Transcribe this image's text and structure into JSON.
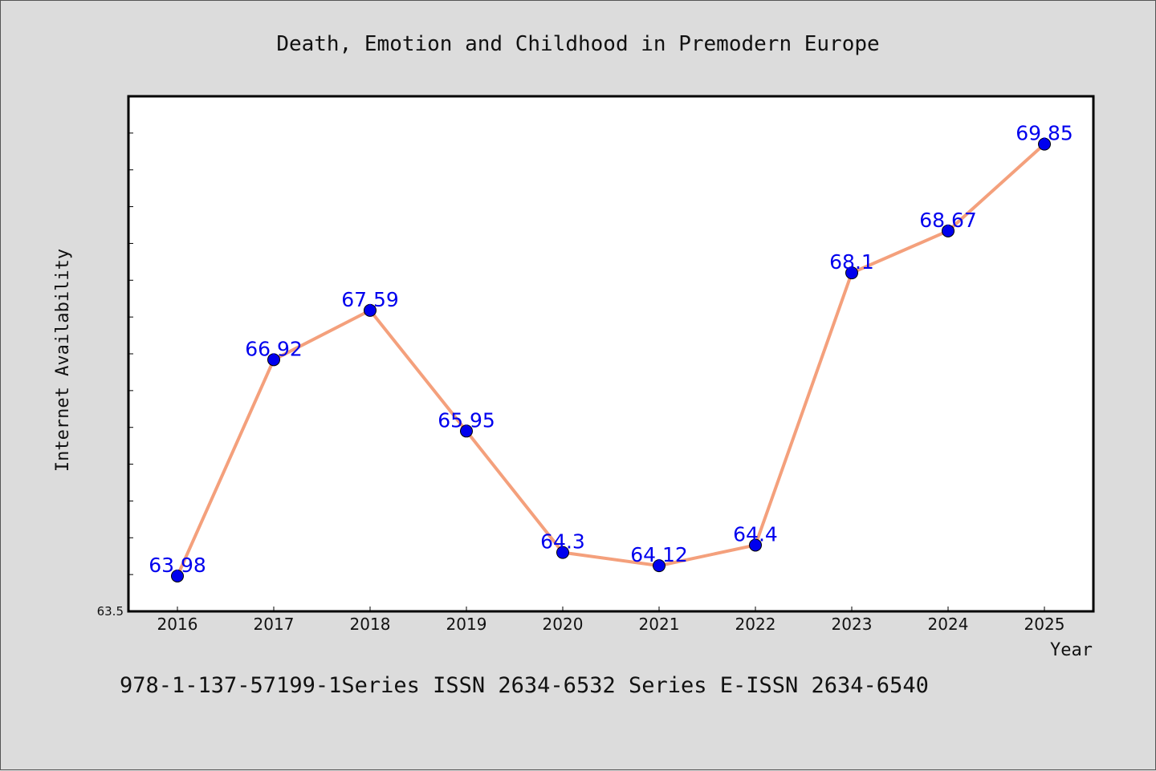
{
  "chart_data": {
    "type": "line",
    "title": "Death, Emotion and Childhood in Premodern Europe",
    "xlabel": "Year",
    "ylabel": "Internet Availability",
    "categories": [
      "2016",
      "2017",
      "2018",
      "2019",
      "2020",
      "2021",
      "2022",
      "2023",
      "2024",
      "2025"
    ],
    "series": [
      {
        "values": [
          63.98,
          66.92,
          67.59,
          65.95,
          64.3,
          64.12,
          64.4,
          68.1,
          68.67,
          69.85
        ],
        "labels": [
          "63.98",
          "66.92",
          "67.59",
          "65.95",
          "64.3",
          "64.12",
          "64.4",
          "68.1",
          "68.67",
          "69.85"
        ],
        "line_color": "#f4a07c",
        "marker_color": "#0000ee"
      }
    ],
    "ylim": [
      63.5,
      70.5
    ],
    "ymin_label": "63.5",
    "grid": false,
    "footer": "978-1-137-57199-1Series ISSN 2634-6532 Series E-ISSN 2634-6540"
  }
}
